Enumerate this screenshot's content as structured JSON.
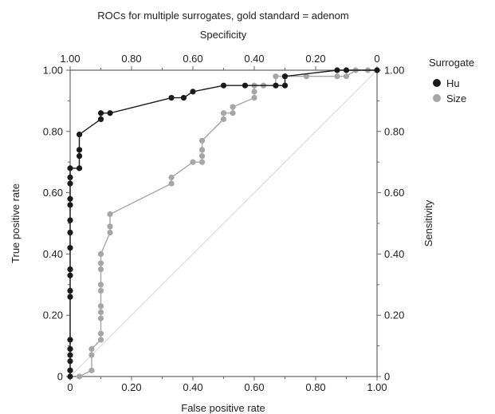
{
  "chart_data": {
    "type": "line",
    "title": "ROCs for multiple surrogates, gold standard = adenom",
    "xlabel": "False positive rate",
    "ylabel": "True positive rate",
    "x2label": "Specificity",
    "y2label": "Sensitivity",
    "xlim": [
      0,
      1
    ],
    "ylim": [
      0,
      1
    ],
    "x_ticks": [
      "0",
      "0.20",
      "0.40",
      "0.60",
      "0.80",
      "1.00"
    ],
    "y_ticks": [
      "0",
      "0.20",
      "0.40",
      "0.60",
      "0.80",
      "1.00"
    ],
    "x2_ticks": [
      "1.00",
      "0.80",
      "0.60",
      "0.40",
      "0.20",
      "0"
    ],
    "y2_ticks": [
      "0",
      "0.20",
      "0.40",
      "0.60",
      "0.80",
      "1.00"
    ],
    "grid": false,
    "legend": {
      "title": "Surrogate",
      "position": "right"
    },
    "series": [
      {
        "name": "Hu",
        "color": "#1a1a1a",
        "points": [
          [
            0,
            0
          ],
          [
            0,
            0.02
          ],
          [
            0,
            0.05
          ],
          [
            0,
            0.07
          ],
          [
            0,
            0.09
          ],
          [
            0,
            0.12
          ],
          [
            0,
            0.26
          ],
          [
            0,
            0.28
          ],
          [
            0,
            0.33
          ],
          [
            0,
            0.35
          ],
          [
            0,
            0.42
          ],
          [
            0,
            0.47
          ],
          [
            0,
            0.51
          ],
          [
            0,
            0.56
          ],
          [
            0,
            0.58
          ],
          [
            0,
            0.63
          ],
          [
            0,
            0.65
          ],
          [
            0,
            0.68
          ],
          [
            0.03,
            0.68
          ],
          [
            0.03,
            0.72
          ],
          [
            0.03,
            0.74
          ],
          [
            0.03,
            0.79
          ],
          [
            0.1,
            0.84
          ],
          [
            0.1,
            0.86
          ],
          [
            0.13,
            0.86
          ],
          [
            0.33,
            0.91
          ],
          [
            0.37,
            0.91
          ],
          [
            0.4,
            0.93
          ],
          [
            0.5,
            0.95
          ],
          [
            0.57,
            0.95
          ],
          [
            0.67,
            0.95
          ],
          [
            0.7,
            0.95
          ],
          [
            0.7,
            0.98
          ],
          [
            0.87,
            1.0
          ],
          [
            0.9,
            1.0
          ],
          [
            1.0,
            1.0
          ]
        ]
      },
      {
        "name": "Size",
        "color": "#a6a6a6",
        "points": [
          [
            0.03,
            0
          ],
          [
            0.07,
            0.02
          ],
          [
            0.07,
            0.07
          ],
          [
            0.07,
            0.09
          ],
          [
            0.1,
            0.12
          ],
          [
            0.1,
            0.14
          ],
          [
            0.1,
            0.19
          ],
          [
            0.1,
            0.21
          ],
          [
            0.1,
            0.23
          ],
          [
            0.1,
            0.28
          ],
          [
            0.1,
            0.3
          ],
          [
            0.1,
            0.35
          ],
          [
            0.1,
            0.37
          ],
          [
            0.1,
            0.4
          ],
          [
            0.13,
            0.47
          ],
          [
            0.13,
            0.49
          ],
          [
            0.13,
            0.53
          ],
          [
            0.33,
            0.63
          ],
          [
            0.33,
            0.65
          ],
          [
            0.4,
            0.7
          ],
          [
            0.43,
            0.7
          ],
          [
            0.43,
            0.72
          ],
          [
            0.43,
            0.74
          ],
          [
            0.43,
            0.77
          ],
          [
            0.5,
            0.84
          ],
          [
            0.5,
            0.86
          ],
          [
            0.53,
            0.86
          ],
          [
            0.53,
            0.88
          ],
          [
            0.6,
            0.91
          ],
          [
            0.6,
            0.93
          ],
          [
            0.6,
            0.95
          ],
          [
            0.63,
            0.95
          ],
          [
            0.67,
            0.95
          ],
          [
            0.67,
            0.98
          ],
          [
            0.7,
            0.98
          ],
          [
            0.77,
            0.98
          ],
          [
            0.87,
            0.98
          ],
          [
            0.9,
            0.98
          ],
          [
            0.93,
            1.0
          ],
          [
            0.97,
            1.0
          ],
          [
            1.0,
            1.0
          ]
        ]
      }
    ],
    "reference_line": {
      "from": [
        0,
        0
      ],
      "to": [
        1,
        1
      ],
      "color": "#dcdcdc"
    }
  }
}
